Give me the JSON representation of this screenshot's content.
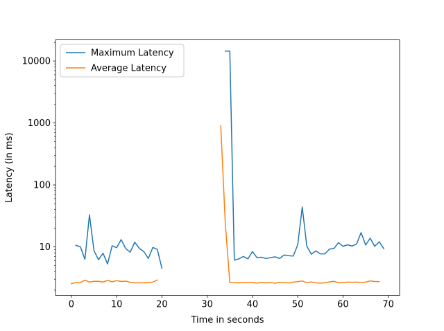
{
  "chart_data": {
    "type": "line",
    "title": "",
    "xlabel": "Time in seconds",
    "ylabel": "Latency (in ms)",
    "xlim": [
      -3.5,
      72.5
    ],
    "ylim": [
      1.65,
      22000
    ],
    "yscale": "log",
    "grid": false,
    "legend_position": "top-left",
    "x_ticks": [
      0,
      10,
      20,
      30,
      40,
      50,
      60,
      70
    ],
    "y_ticks": [
      10,
      100,
      1000,
      10000
    ],
    "x_tick_labels": [
      "0",
      "10",
      "20",
      "30",
      "40",
      "50",
      "60",
      "70"
    ],
    "y_tick_labels": [
      "10",
      "100",
      "1000",
      "10000"
    ],
    "series": [
      {
        "name": "Maximum Latency",
        "color": "#1f77b4",
        "segments": [
          {
            "x": [
              1,
              2,
              3,
              4,
              5,
              6,
              7,
              8,
              9,
              10,
              11,
              12,
              13,
              14,
              15,
              16,
              17,
              18,
              19,
              20
            ],
            "y": [
              10.6,
              10.0,
              6.3,
              33,
              8.7,
              6.2,
              7.9,
              5.3,
              10.4,
              9.7,
              13.1,
              9.4,
              8.2,
              11.9,
              9.5,
              8.4,
              6.5,
              9.8,
              9.1,
              4.5
            ]
          },
          {
            "x": [
              34,
              35,
              36,
              37,
              38,
              39,
              40,
              41,
              42,
              43,
              44,
              45,
              46,
              47,
              48,
              49,
              50,
              51,
              52,
              53,
              54,
              55,
              56,
              57,
              58,
              59,
              60,
              61,
              62,
              63,
              64,
              65,
              66,
              67,
              68,
              69
            ],
            "y": [
              14500,
              14500,
              6.1,
              6.4,
              7.0,
              6.4,
              8.4,
              6.7,
              6.8,
              6.5,
              6.7,
              6.9,
              6.5,
              7.4,
              7.2,
              7.1,
              10.8,
              44,
              10.3,
              7.6,
              8.6,
              7.7,
              7.7,
              9.2,
              9.4,
              11.7,
              10.2,
              10.8,
              10.3,
              11.1,
              17.0,
              10.7,
              13.8,
              10.2,
              12.1,
              9.4
            ]
          }
        ]
      },
      {
        "name": "Average Latency",
        "color": "#ff7f0e",
        "segments": [
          {
            "x": [
              0,
              1,
              2,
              3,
              4,
              5,
              6,
              7,
              8,
              9,
              10,
              11,
              12,
              13,
              14,
              15,
              16,
              17,
              18,
              19
            ],
            "y": [
              2.55,
              2.66,
              2.66,
              2.9,
              2.7,
              2.78,
              2.78,
              2.7,
              2.88,
              2.73,
              2.85,
              2.76,
              2.8,
              2.68,
              2.62,
              2.64,
              2.62,
              2.66,
              2.7,
              2.92
            ]
          },
          {
            "x": [
              33,
              34,
              35,
              36,
              37,
              38,
              39,
              40,
              41,
              42,
              43,
              44,
              45,
              46,
              47,
              48,
              49,
              50,
              51,
              52,
              53,
              54,
              55,
              56,
              57,
              58,
              59,
              60,
              61,
              62,
              63,
              64,
              65,
              66,
              67,
              68
            ],
            "y": [
              900,
              24,
              2.65,
              2.65,
              2.62,
              2.66,
              2.64,
              2.66,
              2.6,
              2.68,
              2.62,
              2.66,
              2.59,
              2.68,
              2.66,
              2.62,
              2.7,
              2.74,
              2.82,
              2.63,
              2.72,
              2.62,
              2.6,
              2.64,
              2.72,
              2.78,
              2.64,
              2.66,
              2.7,
              2.68,
              2.7,
              2.66,
              2.7,
              2.82,
              2.76,
              2.74
            ]
          }
        ]
      }
    ]
  }
}
